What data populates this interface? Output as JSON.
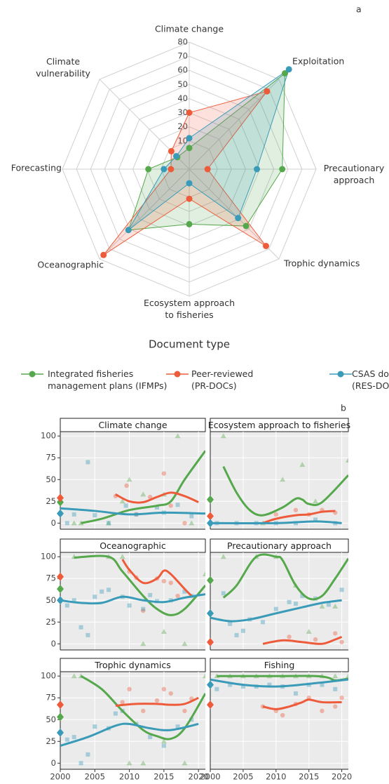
{
  "chart_data": [
    {
      "type": "radar",
      "panel_label": "a",
      "categories": [
        "Climate change",
        "Exploitation",
        "Precautionary\napproach",
        "Trophic dynamics",
        "Ecosystem approach\nto fisheries",
        "Oceanographic",
        "Forecasting",
        "Climate\nvulnerability"
      ],
      "ylim": [
        -10,
        80
      ],
      "yticks": [
        10,
        20,
        30,
        40,
        50,
        60,
        70,
        80
      ],
      "legend_title": "Document type",
      "series": [
        {
          "name": "Integrated fisheries\nmanagement plans (IFMPs)",
          "color": "#55a84b",
          "values": [
            5,
            86,
            56,
            47,
            29,
            51,
            19,
            2
          ]
        },
        {
          "name": "Peer-reviewed\n(PR-DOCs)",
          "color": "#ee5b3b",
          "values": [
            30,
            68,
            3,
            67,
            11,
            76,
            3,
            8
          ]
        },
        {
          "name": "CSAS documents\n(RES-DOCs)",
          "color": "#3a9bb8",
          "values": [
            12,
            90,
            38,
            39,
            0,
            51,
            8,
            3
          ]
        }
      ]
    },
    {
      "type": "facet",
      "panel_label": "b",
      "xlim": [
        2000,
        2021
      ],
      "xticks": [
        2000,
        2005,
        2010,
        2015,
        2020
      ],
      "ylim": [
        -7,
        105
      ],
      "yticks": [
        0,
        25,
        50,
        75,
        100
      ],
      "grid": true,
      "panels": [
        {
          "title": "Climate change",
          "overall": [
            24,
            29,
            11
          ],
          "points": [
            {
              "x": [
                2002,
                2003,
                2007,
                2009,
                2010,
                2012,
                2015,
                2017,
                2019
              ],
              "y": [
                0,
                0,
                0,
                25,
                50,
                33,
                33,
                100,
                0
              ]
            },
            {
              "x": [
                2008,
                2009.6,
                2011,
                2013,
                2015,
                2016,
                2018
              ],
              "y": [
                31,
                43,
                10,
                30,
                57,
                20,
                0
              ]
            },
            {
              "x": [
                2001,
                2002,
                2004,
                2005,
                2007,
                2009.5,
                2011,
                2014,
                2015,
                2017,
                2019
              ],
              "y": [
                0,
                10,
                70,
                9,
                0,
                20,
                10,
                18,
                12,
                21,
                8
              ]
            }
          ],
          "trend": [
            {
              "x": [
                2003,
                2006,
                2010,
                2014,
                2016,
                2018,
                2021
              ],
              "y": [
                0,
                5,
                15,
                20,
                25,
                50,
                83
              ]
            },
            {
              "x": [
                2008,
                2010,
                2012,
                2014,
                2016,
                2018,
                2020
              ],
              "y": [
                33,
                25,
                24,
                30,
                35,
                31,
                24
              ]
            },
            {
              "x": [
                2000,
                2005,
                2010,
                2015,
                2021
              ],
              "y": [
                17,
                14,
                10,
                12,
                11
              ]
            }
          ]
        },
        {
          "title": "Ecosystem approach to fisheries",
          "overall": [
            27,
            8,
            0
          ],
          "points": [
            {
              "x": [
                2002,
                2008,
                2011,
                2014,
                2016,
                2021
              ],
              "y": [
                100,
                0,
                50,
                67,
                25,
                72
              ]
            },
            {
              "x": [
                2010,
                2013,
                2015,
                2017,
                2019
              ],
              "y": [
                10,
                15,
                10,
                15,
                12
              ]
            },
            {
              "x": [
                2001,
                2004,
                2007,
                2010,
                2013,
                2016,
                2019
              ],
              "y": [
                0,
                0,
                0,
                0,
                0,
                4,
                0
              ]
            }
          ],
          "trend": [
            {
              "x": [
                2002,
                2004,
                2006,
                2008,
                2011,
                2013,
                2014,
                2015,
                2017,
                2021
              ],
              "y": [
                65,
                35,
                15,
                9,
                18,
                28,
                27,
                22,
                24,
                55
              ]
            },
            {
              "x": [
                2008,
                2010,
                2013,
                2015,
                2017,
                2019
              ],
              "y": [
                0,
                5,
                9,
                10,
                13,
                14
              ]
            },
            {
              "x": [
                2000,
                2010,
                2016,
                2020
              ],
              "y": [
                0,
                0,
                2,
                0
              ]
            }
          ]
        },
        {
          "title": "Oceanographic",
          "overall": [
            63,
            77,
            50
          ],
          "points": [
            {
              "x": [
                2002,
                2007,
                2009,
                2012,
                2015,
                2018,
                2021
              ],
              "y": [
                100,
                100,
                100,
                0,
                14,
                0,
                80
              ]
            },
            {
              "x": [
                2010,
                2011,
                2012,
                2014,
                2015,
                2016,
                2017
              ],
              "y": [
                83,
                76,
                38,
                75,
                72,
                70,
                55
              ]
            },
            {
              "x": [
                2001,
                2002,
                2003,
                2004,
                2005,
                2006,
                2007,
                2009,
                2010,
                2012,
                2013,
                2014,
                2016,
                2018,
                2019
              ],
              "y": [
                44,
                50,
                19,
                10,
                54,
                60,
                62,
                54,
                44,
                40,
                56,
                49,
                50,
                60,
                55
              ]
            }
          ],
          "trend": [
            {
              "x": [
                2002,
                2007,
                2009,
                2012,
                2014,
                2016,
                2018,
                2021
              ],
              "y": [
                99,
                100,
                83,
                55,
                40,
                33,
                40,
                67
              ]
            },
            {
              "x": [
                2009,
                2010,
                2012,
                2014,
                2015,
                2016,
                2018,
                2019
              ],
              "y": [
                97,
                85,
                70,
                75,
                84,
                80,
                63,
                55
              ]
            },
            {
              "x": [
                2000,
                2003,
                2006,
                2009,
                2012,
                2015,
                2018,
                2021
              ],
              "y": [
                50,
                47,
                47,
                54,
                50,
                48,
                53,
                57
              ]
            }
          ]
        },
        {
          "title": "Precautionary approach",
          "overall": [
            73,
            2,
            35
          ],
          "points": [
            {
              "x": [
                2002,
                2007,
                2010,
                2013,
                2015,
                2017,
                2019
              ],
              "y": [
                100,
                100,
                100,
                67,
                14,
                43,
                43
              ]
            },
            {
              "x": [
                2012,
                2016,
                2019,
                2020
              ],
              "y": [
                8,
                5,
                12,
                2
              ]
            },
            {
              "x": [
                2002,
                2003,
                2004,
                2005,
                2006,
                2008,
                2010,
                2012,
                2013,
                2014,
                2016,
                2018,
                2020
              ],
              "y": [
                58,
                23,
                10,
                15,
                28,
                25,
                40,
                48,
                46,
                55,
                52,
                45,
                62
              ]
            }
          ],
          "trend": [
            {
              "x": [
                2002,
                2004,
                2007,
                2010,
                2011,
                2013,
                2015,
                2017,
                2019,
                2021
              ],
              "y": [
                53,
                67,
                100,
                100,
                96,
                67,
                52,
                55,
                75,
                98
              ]
            },
            {
              "x": [
                2008,
                2011,
                2014,
                2017,
                2019,
                2020
              ],
              "y": [
                0,
                4,
                2,
                0,
                5,
                8
              ]
            },
            {
              "x": [
                2000,
                2003,
                2006,
                2010,
                2014,
                2017,
                2020
              ],
              "y": [
                30,
                26,
                28,
                35,
                42,
                47,
                50
              ]
            }
          ]
        },
        {
          "title": "Trophic dynamics",
          "overall": [
            53,
            67,
            35
          ],
          "points": [
            {
              "x": [
                2002,
                2003,
                2010,
                2012,
                2015,
                2018,
                2021
              ],
              "y": [
                100,
                100,
                0,
                0,
                25,
                0,
                100
              ]
            },
            {
              "x": [
                2009,
                2010,
                2012,
                2014,
                2015,
                2016,
                2018,
                2019
              ],
              "y": [
                70,
                85,
                60,
                72,
                85,
                80,
                60,
                74
              ]
            },
            {
              "x": [
                2001,
                2002,
                2003,
                2004,
                2005,
                2007,
                2008,
                2009,
                2011,
                2013,
                2015,
                2017,
                2019
              ],
              "y": [
                27,
                30,
                0,
                10,
                42,
                40,
                57,
                60,
                45,
                30,
                20,
                42,
                50
              ]
            }
          ],
          "trend": [
            {
              "x": [
                2003,
                2006,
                2009,
                2012,
                2014,
                2016,
                2018,
                2021
              ],
              "y": [
                100,
                85,
                60,
                38,
                31,
                28,
                40,
                80
              ]
            },
            {
              "x": [
                2008,
                2011,
                2014,
                2016,
                2018,
                2020
              ],
              "y": [
                66,
                68,
                68,
                67,
                68,
                75
              ]
            },
            {
              "x": [
                2000,
                2004,
                2008,
                2010,
                2013,
                2016,
                2020
              ],
              "y": [
                20,
                30,
                43,
                45,
                40,
                38,
                45
              ]
            }
          ]
        },
        {
          "title": "Fishing",
          "overall": [
            null,
            67,
            90
          ],
          "points": [
            {
              "x": [
                2001,
                2003,
                2005,
                2007,
                2009,
                2011,
                2013,
                2015,
                2017,
                2019,
                2021
              ],
              "y": [
                100,
                100,
                100,
                100,
                100,
                100,
                100,
                100,
                100,
                100,
                100
              ]
            },
            {
              "x": [
                2008,
                2010,
                2011,
                2013,
                2015,
                2017,
                2019,
                2020
              ],
              "y": [
                65,
                60,
                55,
                68,
                75,
                60,
                65,
                75
              ]
            },
            {
              "x": [
                2001,
                2003,
                2005,
                2007,
                2009,
                2011,
                2013,
                2015,
                2017,
                2019
              ],
              "y": [
                85,
                90,
                88,
                88,
                90,
                88,
                80,
                90,
                90,
                85
              ]
            }
          ],
          "trend": [
            {
              "x": [
                2001,
                2010,
                2016,
                2018,
                2019,
                2021
              ],
              "y": [
                100,
                100,
                100,
                98,
                95,
                97
              ]
            },
            {
              "x": [
                2008,
                2010,
                2012,
                2014,
                2015,
                2017,
                2020
              ],
              "y": [
                65,
                62,
                65,
                70,
                73,
                70,
                70
              ]
            },
            {
              "x": [
                2000,
                2005,
                2010,
                2015,
                2021
              ],
              "y": [
                96,
                90,
                88,
                91,
                96
              ]
            }
          ]
        }
      ]
    }
  ]
}
